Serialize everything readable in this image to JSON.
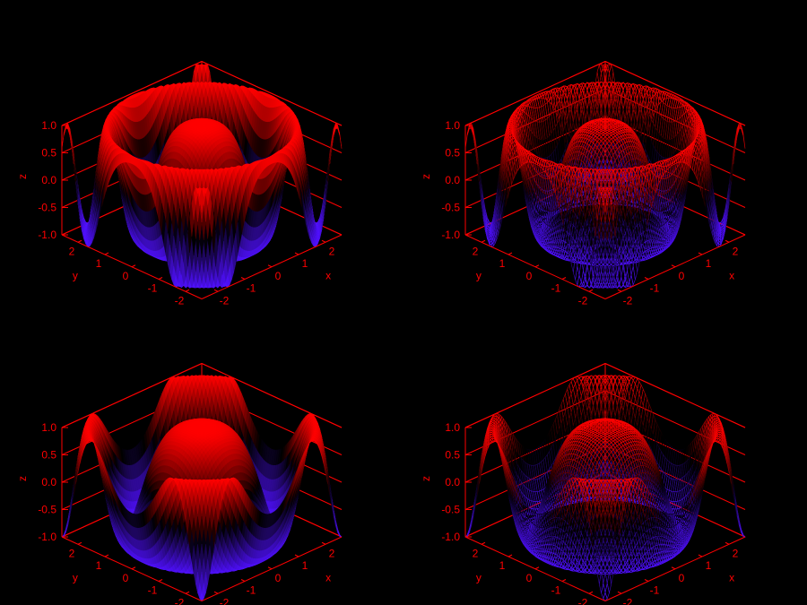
{
  "colors": {
    "background": "#000000",
    "axis": "#ff0000",
    "high": "#ff0000",
    "low": "#5010ff"
  },
  "chart_data": [
    {
      "type": "surface",
      "title": "",
      "xlabel": "x",
      "ylabel": "y",
      "zlabel": "z",
      "xlim": [
        -2.6,
        2.6
      ],
      "ylim": [
        -2.6,
        2.6
      ],
      "zlim": [
        -1.0,
        1.0
      ],
      "x_ticks": [
        "-2",
        "-1",
        "0",
        "1",
        "2"
      ],
      "y_ticks": [
        "2",
        "1",
        "0",
        "-1",
        "-2"
      ],
      "z_ticks": [
        "1.0",
        "0.5",
        "0.0",
        "-0.5",
        "-1.0"
      ],
      "function": "z = cos(k·r²), r² = x² + y²",
      "k": 1.0,
      "hidden_surface": true
    },
    {
      "type": "surface",
      "title": "",
      "xlabel": "x",
      "ylabel": "y",
      "zlabel": "z",
      "xlim": [
        -2.6,
        2.6
      ],
      "ylim": [
        -2.6,
        2.6
      ],
      "zlim": [
        -1.0,
        1.0
      ],
      "x_ticks": [
        "-2",
        "-1",
        "0",
        "1",
        "2"
      ],
      "y_ticks": [
        "2",
        "1",
        "0",
        "-1",
        "-2"
      ],
      "z_ticks": [
        "1.0",
        "0.5",
        "0.0",
        "-0.5",
        "-1.0"
      ],
      "function": "z = cos(k·r²), r² = x² + y²",
      "k": 1.0,
      "hidden_surface": false
    },
    {
      "type": "surface",
      "title": "",
      "xlabel": "x",
      "ylabel": "y",
      "zlabel": "z",
      "xlim": [
        -2.6,
        2.6
      ],
      "ylim": [
        -2.6,
        2.6
      ],
      "zlim": [
        -1.0,
        1.0
      ],
      "x_ticks": [
        "-2",
        "-1",
        "0",
        "1",
        "2"
      ],
      "y_ticks": [
        "2",
        "1",
        "0",
        "-1",
        "-2"
      ],
      "z_ticks": [
        "1.0",
        "0.5",
        "0.0",
        "-0.5",
        "-1.0"
      ],
      "function": "z = cos(k·r²), r² = x² + y²",
      "k": 0.7,
      "hidden_surface": true
    },
    {
      "type": "surface",
      "title": "",
      "xlabel": "x",
      "ylabel": "y",
      "zlabel": "z",
      "xlim": [
        -2.6,
        2.6
      ],
      "ylim": [
        -2.6,
        2.6
      ],
      "zlim": [
        -1.0,
        1.0
      ],
      "x_ticks": [
        "-2",
        "-1",
        "0",
        "1",
        "2"
      ],
      "y_ticks": [
        "2",
        "1",
        "0",
        "-1",
        "-2"
      ],
      "z_ticks": [
        "1.0",
        "0.5",
        "0.0",
        "-0.5",
        "-1.0"
      ],
      "function": "z = cos(k·r²), r² = x² + y²",
      "k": 0.7,
      "hidden_surface": false
    }
  ]
}
